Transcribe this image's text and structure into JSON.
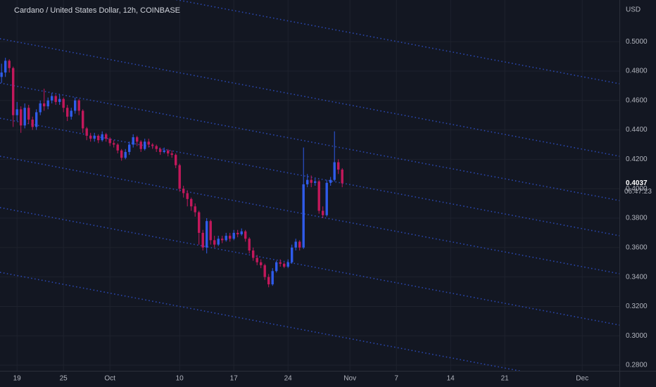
{
  "chart_data": {
    "type": "candlestick",
    "title": "Cardano / United States Dollar, 12h, COINBASE",
    "y_unit": "USD",
    "last_price": 0.4037,
    "countdown": "06:47:23",
    "up_color": "#2f5bea",
    "down_color": "#c2185b",
    "grid": true,
    "ylim": [
      0.2762,
      0.5283
    ],
    "yticks": [
      {
        "value": 0.28,
        "label": "0.2800"
      },
      {
        "value": 0.3,
        "label": "0.3000"
      },
      {
        "value": 0.32,
        "label": "0.3200"
      },
      {
        "value": 0.34,
        "label": "0.3400"
      },
      {
        "value": 0.36,
        "label": "0.3600"
      },
      {
        "value": 0.38,
        "label": "0.3800"
      },
      {
        "value": 0.4,
        "label": "0.4000"
      },
      {
        "value": 0.42,
        "label": "0.4200"
      },
      {
        "value": 0.44,
        "label": "0.4400"
      },
      {
        "value": 0.46,
        "label": "0.4600"
      },
      {
        "value": 0.48,
        "label": "0.4800"
      },
      {
        "value": 0.5,
        "label": "0.5000"
      }
    ],
    "xlim": [
      -0.4,
      159.6
    ],
    "xticks": [
      {
        "value": 4,
        "label": "19"
      },
      {
        "value": 16,
        "label": "25"
      },
      {
        "value": 28,
        "label": "Oct"
      },
      {
        "value": 46,
        "label": "10"
      },
      {
        "value": 60,
        "label": "17"
      },
      {
        "value": 74,
        "label": "24"
      },
      {
        "value": 90,
        "label": "Nov"
      },
      {
        "value": 102,
        "label": "7"
      },
      {
        "value": 116,
        "label": "14"
      },
      {
        "value": 130,
        "label": "21"
      },
      {
        "value": 150,
        "label": "Dec"
      }
    ],
    "open": [
      0.476,
      0.479,
      0.487,
      0.482,
      0.45,
      0.454,
      0.443,
      0.455,
      0.447,
      0.442,
      0.452,
      0.458,
      0.456,
      0.46,
      0.463,
      0.459,
      0.461,
      0.455,
      0.449,
      0.453,
      0.46,
      0.453,
      0.441,
      0.436,
      0.434,
      0.436,
      0.433,
      0.437,
      0.434,
      0.431,
      0.43,
      0.426,
      0.421,
      0.425,
      0.43,
      0.435,
      0.432,
      0.427,
      0.432,
      0.43,
      0.429,
      0.427,
      0.425,
      0.426,
      0.424,
      0.423,
      0.416,
      0.4,
      0.397,
      0.393,
      0.388,
      0.384,
      0.37,
      0.36,
      0.378,
      0.365,
      0.362,
      0.366,
      0.365,
      0.368,
      0.366,
      0.37,
      0.369,
      0.371,
      0.366,
      0.358,
      0.353,
      0.35,
      0.348,
      0.34,
      0.335,
      0.344,
      0.35,
      0.349,
      0.347,
      0.35,
      0.36,
      0.364,
      0.36,
      0.403,
      0.406,
      0.404,
      0.405,
      0.385,
      0.382,
      0.404,
      0.406,
      0.418,
      0.413
    ],
    "high": [
      0.485,
      0.489,
      0.488,
      0.483,
      0.459,
      0.456,
      0.458,
      0.457,
      0.449,
      0.454,
      0.46,
      0.468,
      0.462,
      0.465,
      0.464,
      0.464,
      0.462,
      0.457,
      0.455,
      0.462,
      0.461,
      0.454,
      0.442,
      0.438,
      0.438,
      0.437,
      0.439,
      0.438,
      0.435,
      0.433,
      0.431,
      0.427,
      0.427,
      0.432,
      0.437,
      0.436,
      0.433,
      0.434,
      0.434,
      0.431,
      0.43,
      0.428,
      0.428,
      0.427,
      0.426,
      0.424,
      0.417,
      0.402,
      0.399,
      0.394,
      0.39,
      0.385,
      0.372,
      0.38,
      0.379,
      0.368,
      0.368,
      0.368,
      0.37,
      0.37,
      0.372,
      0.372,
      0.373,
      0.372,
      0.367,
      0.36,
      0.355,
      0.352,
      0.349,
      0.342,
      0.346,
      0.351,
      0.352,
      0.35,
      0.352,
      0.362,
      0.366,
      0.365,
      0.428,
      0.41,
      0.409,
      0.407,
      0.406,
      0.388,
      0.406,
      0.408,
      0.439,
      0.42,
      0.414
    ],
    "low": [
      0.472,
      0.476,
      0.479,
      0.442,
      0.446,
      0.438,
      0.441,
      0.444,
      0.44,
      0.44,
      0.45,
      0.453,
      0.454,
      0.458,
      0.457,
      0.457,
      0.452,
      0.446,
      0.447,
      0.451,
      0.45,
      0.438,
      0.433,
      0.432,
      0.432,
      0.431,
      0.432,
      0.432,
      0.429,
      0.428,
      0.424,
      0.419,
      0.42,
      0.423,
      0.428,
      0.429,
      0.425,
      0.426,
      0.428,
      0.427,
      0.425,
      0.423,
      0.424,
      0.422,
      0.421,
      0.414,
      0.398,
      0.394,
      0.388,
      0.385,
      0.381,
      0.362,
      0.358,
      0.356,
      0.362,
      0.36,
      0.361,
      0.363,
      0.364,
      0.364,
      0.365,
      0.367,
      0.368,
      0.364,
      0.356,
      0.351,
      0.348,
      0.346,
      0.338,
      0.333,
      0.334,
      0.343,
      0.347,
      0.346,
      0.346,
      0.349,
      0.358,
      0.358,
      0.359,
      0.401,
      0.401,
      0.402,
      0.383,
      0.38,
      0.381,
      0.402,
      0.405,
      0.41,
      0.401
    ],
    "close": [
      0.479,
      0.487,
      0.482,
      0.45,
      0.454,
      0.443,
      0.455,
      0.447,
      0.442,
      0.452,
      0.458,
      0.456,
      0.46,
      0.463,
      0.459,
      0.461,
      0.455,
      0.449,
      0.453,
      0.46,
      0.453,
      0.441,
      0.436,
      0.434,
      0.436,
      0.433,
      0.437,
      0.434,
      0.431,
      0.43,
      0.426,
      0.421,
      0.425,
      0.43,
      0.435,
      0.432,
      0.427,
      0.432,
      0.43,
      0.429,
      0.427,
      0.425,
      0.426,
      0.424,
      0.423,
      0.416,
      0.4,
      0.397,
      0.393,
      0.388,
      0.384,
      0.37,
      0.36,
      0.378,
      0.365,
      0.362,
      0.366,
      0.365,
      0.368,
      0.366,
      0.37,
      0.369,
      0.371,
      0.366,
      0.358,
      0.353,
      0.35,
      0.348,
      0.34,
      0.335,
      0.344,
      0.35,
      0.349,
      0.347,
      0.35,
      0.36,
      0.364,
      0.36,
      0.403,
      0.406,
      0.404,
      0.405,
      0.385,
      0.382,
      0.404,
      0.406,
      0.418,
      0.413,
      0.4037
    ]
  }
}
